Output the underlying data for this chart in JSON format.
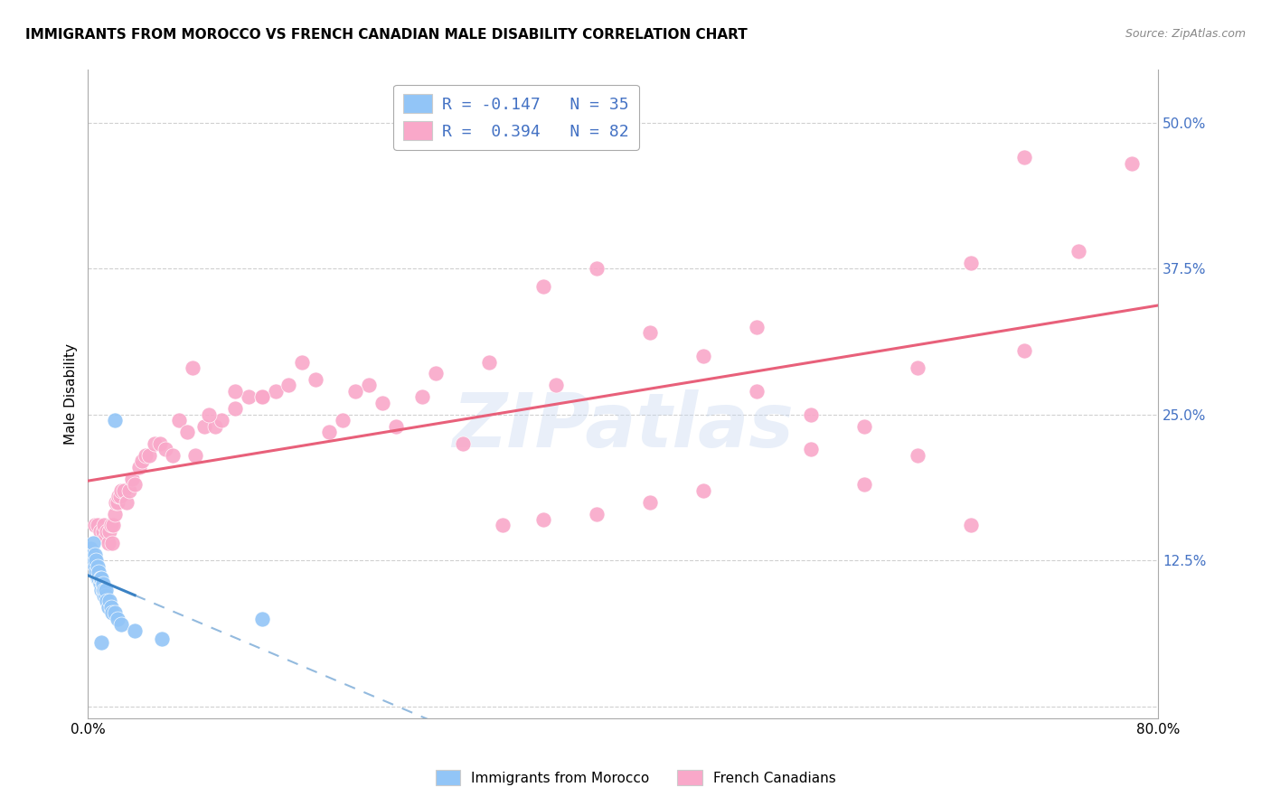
{
  "title": "IMMIGRANTS FROM MOROCCO VS FRENCH CANADIAN MALE DISABILITY CORRELATION CHART",
  "source": "Source: ZipAtlas.com",
  "ylabel": "Male Disability",
  "ytick_labels": [
    "",
    "12.5%",
    "25.0%",
    "37.5%",
    "50.0%"
  ],
  "ytick_vals": [
    0.0,
    0.125,
    0.25,
    0.375,
    0.5
  ],
  "xlim": [
    0.0,
    0.8
  ],
  "ylim": [
    -0.01,
    0.545
  ],
  "legend_r1": "R = -0.147",
  "legend_n1": "N = 35",
  "legend_r2": "R =  0.394",
  "legend_n2": "N = 82",
  "color_blue": "#92C5F7",
  "color_pink": "#F9A8C9",
  "line_color_blue": "#3B82C4",
  "line_color_pink": "#E8607A",
  "watermark": "ZIPatlas",
  "blue_x": [
    0.002,
    0.003,
    0.004,
    0.004,
    0.005,
    0.005,
    0.006,
    0.006,
    0.007,
    0.007,
    0.008,
    0.008,
    0.009,
    0.009,
    0.01,
    0.01,
    0.011,
    0.011,
    0.012,
    0.012,
    0.013,
    0.013,
    0.014,
    0.015,
    0.016,
    0.017,
    0.018,
    0.02,
    0.022,
    0.025,
    0.035,
    0.02,
    0.055,
    0.13,
    0.01
  ],
  "blue_y": [
    0.135,
    0.13,
    0.125,
    0.14,
    0.12,
    0.13,
    0.115,
    0.125,
    0.11,
    0.12,
    0.11,
    0.115,
    0.105,
    0.11,
    0.1,
    0.11,
    0.1,
    0.105,
    0.095,
    0.1,
    0.095,
    0.1,
    0.09,
    0.085,
    0.09,
    0.085,
    0.08,
    0.08,
    0.075,
    0.07,
    0.065,
    0.245,
    0.058,
    0.075,
    0.055
  ],
  "pink_x": [
    0.005,
    0.007,
    0.009,
    0.011,
    0.012,
    0.013,
    0.014,
    0.015,
    0.016,
    0.017,
    0.018,
    0.019,
    0.02,
    0.021,
    0.022,
    0.023,
    0.024,
    0.025,
    0.027,
    0.029,
    0.031,
    0.033,
    0.035,
    0.038,
    0.04,
    0.043,
    0.046,
    0.05,
    0.054,
    0.058,
    0.063,
    0.068,
    0.074,
    0.08,
    0.087,
    0.095,
    0.1,
    0.11,
    0.12,
    0.13,
    0.14,
    0.15,
    0.17,
    0.19,
    0.21,
    0.23,
    0.25,
    0.28,
    0.31,
    0.34,
    0.38,
    0.42,
    0.46,
    0.5,
    0.54,
    0.58,
    0.62,
    0.66,
    0.7,
    0.74,
    0.078,
    0.09,
    0.11,
    0.13,
    0.16,
    0.18,
    0.2,
    0.22,
    0.26,
    0.3,
    0.34,
    0.38,
    0.42,
    0.46,
    0.5,
    0.54,
    0.58,
    0.62,
    0.66,
    0.7,
    0.35,
    0.78
  ],
  "pink_y": [
    0.155,
    0.155,
    0.15,
    0.15,
    0.155,
    0.145,
    0.15,
    0.14,
    0.15,
    0.155,
    0.14,
    0.155,
    0.165,
    0.175,
    0.175,
    0.18,
    0.18,
    0.185,
    0.185,
    0.175,
    0.185,
    0.195,
    0.19,
    0.205,
    0.21,
    0.215,
    0.215,
    0.225,
    0.225,
    0.22,
    0.215,
    0.245,
    0.235,
    0.215,
    0.24,
    0.24,
    0.245,
    0.255,
    0.265,
    0.265,
    0.27,
    0.275,
    0.28,
    0.245,
    0.275,
    0.24,
    0.265,
    0.225,
    0.155,
    0.16,
    0.165,
    0.175,
    0.185,
    0.27,
    0.22,
    0.19,
    0.215,
    0.155,
    0.305,
    0.39,
    0.29,
    0.25,
    0.27,
    0.265,
    0.295,
    0.235,
    0.27,
    0.26,
    0.285,
    0.295,
    0.36,
    0.375,
    0.32,
    0.3,
    0.325,
    0.25,
    0.24,
    0.29,
    0.38,
    0.47,
    0.275,
    0.465
  ]
}
